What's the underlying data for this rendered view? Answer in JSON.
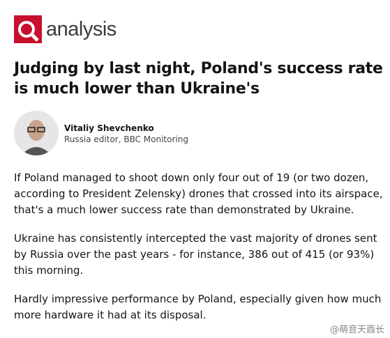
{
  "header": {
    "label": "analysis"
  },
  "headline": "Judging by last night, Poland's success rate is much lower than Ukraine's",
  "author": {
    "name": "Vitaliy Shevchenko",
    "role": "Russia editor, BBC Monitoring"
  },
  "paragraphs": [
    "If Poland managed to shoot down only four out of 19 (or two dozen, according to President Zelensky) drones that crossed into its airspace, that's a much lower success rate than demonstrated by Ukraine.",
    "Ukraine has consistently intercepted the vast majority of drones sent by Russia over the past years - for instance, 386 out of 415 (or 93%) this morning.",
    "Hardly impressive performance by Poland, especially given how much more hardware it had at its disposal."
  ],
  "watermark": "@萌音天酉长"
}
